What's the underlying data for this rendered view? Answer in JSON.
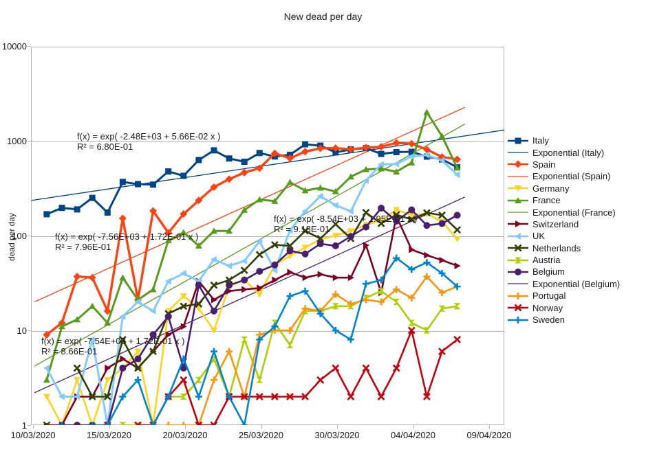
{
  "title": "New dead per day",
  "y_axis": {
    "title": "dead per day",
    "ticks": [
      "10000",
      "1000",
      "100",
      "10",
      "1"
    ]
  },
  "x_axis": {
    "ticks": [
      "10/03/2020",
      "15/03/2020",
      "20/03/2020",
      "25/03/2020",
      "30/03/2020",
      "04/04/2020",
      "09/04/2020"
    ]
  },
  "annotations": [
    {
      "line1": "f(x) = exp( -2.48E+03 + 5.66E-02 x )",
      "line2": "R² = 6.80E-01"
    },
    {
      "line1": "f(x) = exp( -7.56E+03 + 1.72E-01 x )",
      "line2": "R² = 7.96E-01"
    },
    {
      "line1": "f(x) = exp( -8.54E+03 + 1.95E-01 x )",
      "line2": "R² = 9.13E-01"
    },
    {
      "line1": "f(x) = exp( -7.54E+03 + 1.72E-01 x )",
      "line2": "R² = 8.66E-01"
    }
  ],
  "chart_data": {
    "type": "line",
    "y_scale": "log",
    "ylim": [
      1,
      10000
    ],
    "grid": "horizontal-decades",
    "legend_position": "right",
    "x_dates": [
      "10/03",
      "11/03",
      "12/03",
      "13/03",
      "14/03",
      "15/03",
      "16/03",
      "17/03",
      "18/03",
      "19/03",
      "20/03",
      "21/03",
      "22/03",
      "23/03",
      "24/03",
      "25/03",
      "26/03",
      "27/03",
      "28/03",
      "29/03",
      "30/03",
      "31/03",
      "01/04",
      "02/04",
      "03/04",
      "04/04",
      "05/04",
      "06/04"
    ],
    "series": [
      {
        "name": "Italy",
        "color": "#004586",
        "marker": "square",
        "width": 3,
        "values": [
          168,
          196,
          189,
          250,
          175,
          368,
          349,
          345,
          475,
          427,
          627,
          793,
          651,
          601,
          743,
          683,
          712,
          919,
          889,
          756,
          812,
          837,
          727,
          760,
          766,
          681,
          636,
          525
        ]
      },
      {
        "name": "Spain",
        "color": "#FF420E",
        "marker": "diamond",
        "width": 3.4,
        "values": [
          9,
          12,
          37,
          36,
          16,
          152,
          21,
          182,
          107,
          169,
          235,
          324,
          394,
          462,
          514,
          738,
          655,
          769,
          832,
          838,
          812,
          849,
          864,
          950,
          932,
          809,
          674,
          637
        ]
      },
      {
        "name": "Germany",
        "color": "#FFD320",
        "marker": "triangle-down",
        "width": 2.6,
        "values": [
          2,
          1,
          3,
          1,
          3,
          4,
          6,
          1,
          16,
          23,
          17,
          10,
          29,
          34,
          24,
          49,
          61,
          75,
          91,
          100,
          112,
          130,
          145,
          187,
          165,
          170,
          140,
          92
        ]
      },
      {
        "name": "France",
        "color": "#579D1C",
        "marker": "triangle-up",
        "width": 3,
        "values": [
          3,
          11,
          13,
          18,
          12,
          36,
          21,
          27,
          89,
          108,
          78,
          112,
          112,
          186,
          240,
          231,
          365,
          299,
          319,
          292,
          418,
          499,
          509,
          471,
          588,
          2004,
          1120,
          518
        ]
      },
      {
        "name": "Switzerland",
        "color": "#7E0021",
        "marker": "triangle-right",
        "width": 2.6,
        "values": [
          1,
          1,
          2,
          2,
          4,
          5,
          4,
          6,
          9,
          11,
          33,
          21,
          26,
          27,
          28,
          34,
          41,
          36,
          39,
          36,
          36,
          79,
          25,
          160,
          71,
          62,
          55,
          48
        ]
      },
      {
        "name": "UK",
        "color": "#83CAFF",
        "marker": "triangle-left",
        "width": 3,
        "values": [
          4,
          2,
          2,
          8,
          1,
          14,
          20,
          16,
          33,
          40,
          33,
          56,
          48,
          54,
          87,
          43,
          113,
          181,
          260,
          209,
          180,
          381,
          563,
          569,
          684,
          708,
          621,
          439
        ]
      },
      {
        "name": "Netherlands",
        "color": "#314004",
        "marker": "x",
        "width": 2.6,
        "values": [
          1,
          0,
          4,
          2,
          2,
          8,
          4,
          6,
          15,
          18,
          19,
          30,
          34,
          43,
          63,
          80,
          78,
          112,
          93,
          132,
          93,
          175,
          134,
          166,
          148,
          174,
          164,
          115
        ]
      },
      {
        "name": "Austria",
        "color": "#AECF00",
        "marker": "hourglass",
        "width": 2.6,
        "values": [
          0,
          0,
          0,
          1,
          0,
          1,
          1,
          1,
          2,
          2,
          3,
          5,
          2,
          8,
          3,
          12,
          7,
          16,
          16,
          18,
          18,
          22,
          26,
          20,
          12,
          10,
          17,
          18
        ]
      },
      {
        "name": "Belgium",
        "color": "#4B1F6F",
        "marker": "circle",
        "width": 2.6,
        "values": [
          0,
          1,
          1,
          1,
          1,
          4,
          5,
          9,
          14,
          4,
          30,
          16,
          30,
          34,
          42,
          49,
          69,
          64,
          82,
          78,
          98,
          123,
          195,
          142,
          187,
          128,
          134,
          164
        ]
      },
      {
        "name": "Portugal",
        "color": "#FF950E",
        "marker": "plus",
        "width": 2.6,
        "values": [
          0,
          0,
          0,
          0,
          0,
          0,
          0,
          0,
          1,
          1,
          1,
          3,
          6,
          2,
          9,
          10,
          10,
          17,
          16,
          24,
          19,
          21,
          20,
          27,
          22,
          37,
          25,
          29
        ]
      },
      {
        "name": "Norway",
        "color": "#C5000B",
        "marker": "x",
        "width": 2.6,
        "values": [
          0,
          0,
          0,
          0,
          1,
          0,
          1,
          1,
          2,
          3,
          1,
          1,
          2,
          2,
          2,
          2,
          2,
          2,
          3,
          4,
          2,
          4,
          2,
          4,
          10,
          2,
          6,
          8
        ]
      },
      {
        "name": "Sweden",
        "color": "#0084D1",
        "marker": "plus",
        "width": 2.6,
        "values": [
          0,
          1,
          0,
          1,
          1,
          2,
          3,
          1,
          2,
          5,
          2,
          6,
          2,
          1,
          8,
          11,
          23,
          26,
          15,
          10,
          8,
          31,
          34,
          58,
          44,
          52,
          40,
          29
        ]
      }
    ],
    "trend_lines": [
      {
        "name": "Exponential (Italy)",
        "color": "#004586",
        "from": {
          "day": -1.0,
          "value": 235
        },
        "to": {
          "day": 30.1,
          "value": 1300
        }
      },
      {
        "name": "Exponential (Spain)",
        "color": "#FF420E",
        "from": {
          "day": -0.8,
          "value": 20
        },
        "to": {
          "day": 27.5,
          "value": 2250
        }
      },
      {
        "name": "Exponential (France)",
        "color": "#579D1C",
        "from": {
          "day": -0.8,
          "value": 4.2
        },
        "to": {
          "day": 27.5,
          "value": 1500
        }
      },
      {
        "name": "Exponential (Belgium)",
        "color": "#4B1F6F",
        "from": {
          "day": -0.8,
          "value": 2.2
        },
        "to": {
          "day": 27.5,
          "value": 255
        }
      }
    ]
  },
  "legend": {
    "items": [
      {
        "label": "Italy",
        "color": "#004586",
        "marker": "square"
      },
      {
        "label": "Exponential (Italy)",
        "color": "#004586",
        "marker": "line"
      },
      {
        "label": "Spain",
        "color": "#FF420E",
        "marker": "diamond"
      },
      {
        "label": "Exponential (Spain)",
        "color": "#FF420E",
        "marker": "line"
      },
      {
        "label": "Germany",
        "color": "#FFD320",
        "marker": "triangle-down"
      },
      {
        "label": "France",
        "color": "#579D1C",
        "marker": "triangle-up"
      },
      {
        "label": "Exponential (France)",
        "color": "#579D1C",
        "marker": "line"
      },
      {
        "label": "Switzerland",
        "color": "#7E0021",
        "marker": "triangle-right"
      },
      {
        "label": "UK",
        "color": "#83CAFF",
        "marker": "triangle-left"
      },
      {
        "label": "Netherlands",
        "color": "#314004",
        "marker": "x"
      },
      {
        "label": "Austria",
        "color": "#AECF00",
        "marker": "hourglass"
      },
      {
        "label": "Belgium",
        "color": "#4B1F6F",
        "marker": "circle"
      },
      {
        "label": "Exponential (Belgium)",
        "color": "#4B1F6F",
        "marker": "line"
      },
      {
        "label": "Portugal",
        "color": "#FF950E",
        "marker": "plus"
      },
      {
        "label": "Norway",
        "color": "#C5000B",
        "marker": "x"
      },
      {
        "label": "Sweden",
        "color": "#0084D1",
        "marker": "plus"
      }
    ]
  }
}
